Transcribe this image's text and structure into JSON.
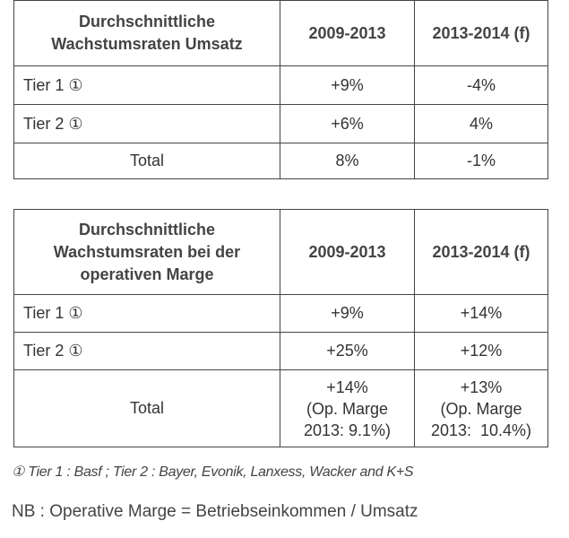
{
  "table1": {
    "header": {
      "label_line1": "Durchschnittliche",
      "label_line2": "Wachstumsraten Umsatz",
      "col1": "2009-2013",
      "col2": "2013-2014 (f)"
    },
    "rows": [
      {
        "label": "Tier 1 ①",
        "v1": "+9%",
        "v2": "-4%"
      },
      {
        "label": "Tier 2 ①",
        "v1": "+6%",
        "v2": "4%"
      },
      {
        "label": "Total",
        "v1": "8%",
        "v2": "-1%"
      }
    ]
  },
  "table2": {
    "header": {
      "label_line1": "Durchschnittliche",
      "label_line2": "Wachstumsraten bei der",
      "label_line3": "operativen Marge",
      "col1": "2009-2013",
      "col2": "2013-2014 (f)"
    },
    "rows": [
      {
        "label": "Tier 1 ①",
        "v1": "+9%",
        "v2": "+14%"
      },
      {
        "label": "Tier 2 ①",
        "v1": "+25%",
        "v2": "+12%"
      }
    ],
    "total": {
      "label": "Total",
      "v1_line1": "+14%",
      "v1_line2": "(Op. Marge",
      "v1_line3": "2013: 9.1%)",
      "v2_line1": "+13%",
      "v2_line2": "(Op. Marge",
      "v2_line3": "2013:  10.4%)"
    }
  },
  "footnote": "① Tier 1 : Basf ; Tier 2 : Bayer, Evonik, Lanxess, Wacker and K+S",
  "nb": "NB : Operative Marge = Betriebseinkommen / Umsatz"
}
